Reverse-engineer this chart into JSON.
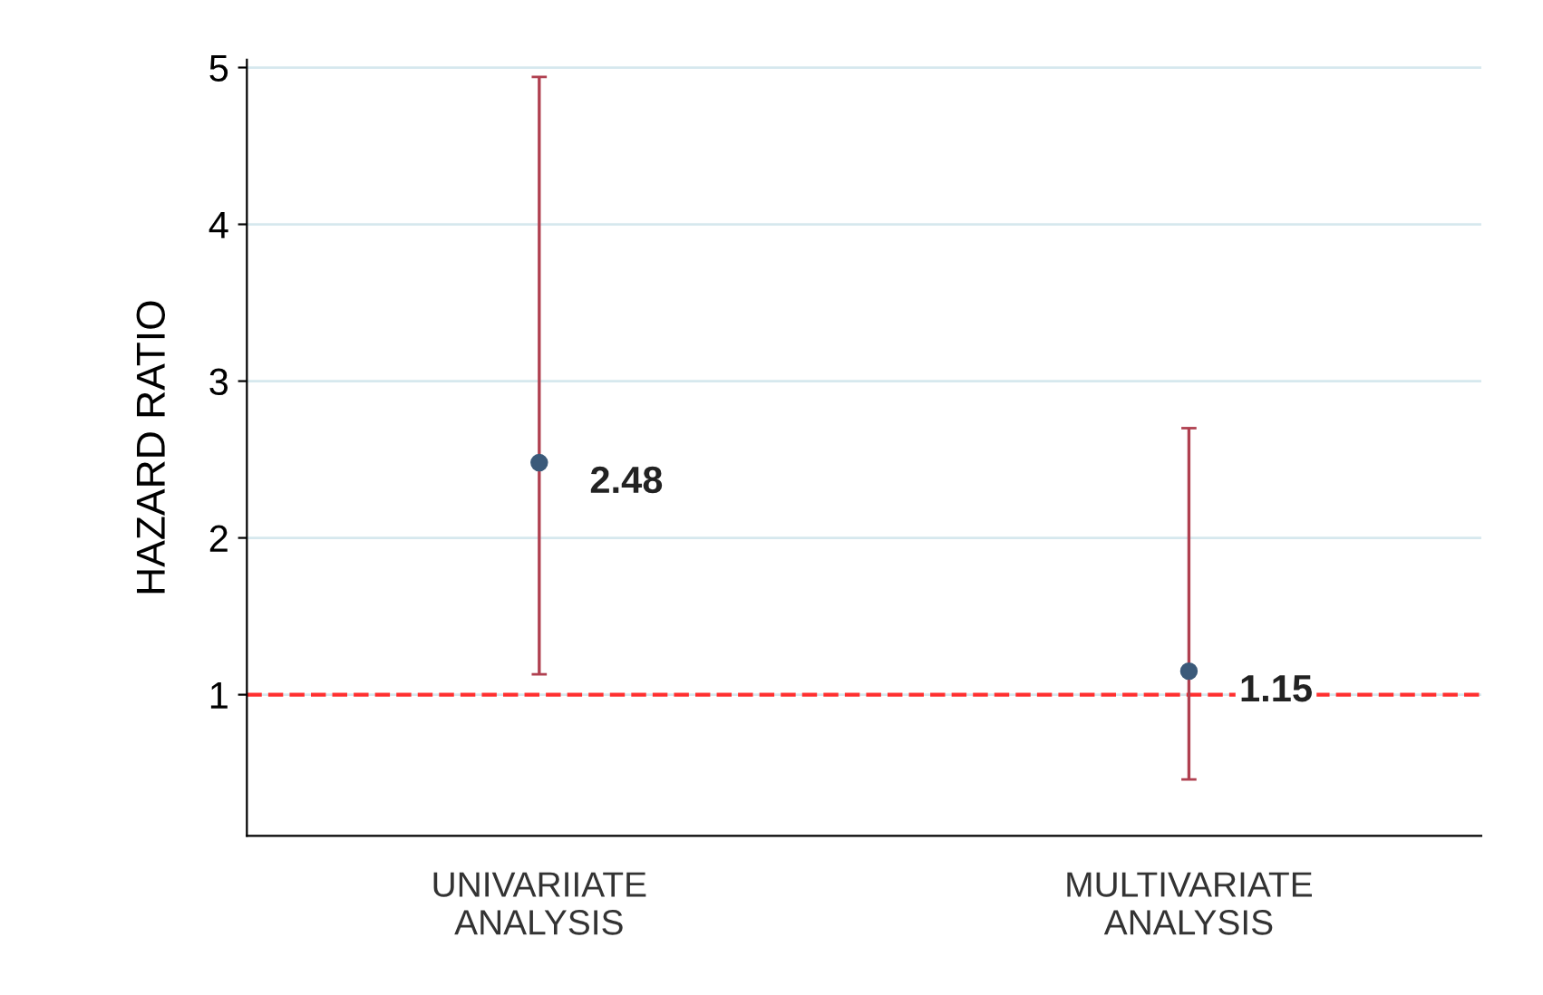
{
  "chart_data": {
    "type": "scatter",
    "ylabel": "HAZARD RATIO",
    "categories": [
      "UNIVARIIATE\nANALYSIS",
      "MULTIVARIATE\nANALYSIS"
    ],
    "series": [
      {
        "color": "#3b5a7a",
        "values": [
          2.48,
          1.15
        ],
        "errors": [
          [
            1.13,
            4.94
          ],
          [
            0.46,
            2.7
          ]
        ]
      }
    ],
    "data_labels": true,
    "marker": "circle",
    "ylim": [
      0.1,
      5.05
    ],
    "yticks": [
      1,
      2,
      3,
      4,
      5
    ],
    "grid": "y",
    "ref_lines": [
      {
        "axis": "y",
        "value": 1,
        "color": "#ff3030",
        "line_style": "dashed"
      }
    ]
  }
}
